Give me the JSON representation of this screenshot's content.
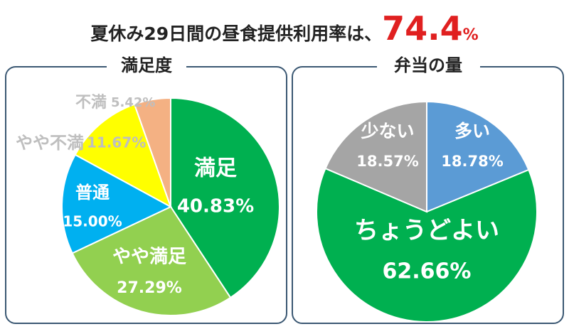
{
  "headline": {
    "text": "夏休み29日間の昼食提供利用率は、",
    "value": 74.4,
    "unit": "%"
  },
  "chart_data": [
    {
      "type": "pie",
      "title": "満足度",
      "categories": [
        "満足",
        "やや満足",
        "普通",
        "やや不満",
        "不満"
      ],
      "values": [
        40.83,
        27.29,
        15.0,
        11.67,
        5.42
      ],
      "value_labels": [
        "40.83%",
        "27.29%",
        "15.00%",
        "11.67%",
        "5.42%"
      ],
      "colors": [
        "#00b050",
        "#92d050",
        "#00b0f0",
        "#ffff00",
        "#f4b183"
      ]
    },
    {
      "type": "pie",
      "title": "弁当の量",
      "categories": [
        "多い",
        "ちょうどよい",
        "少ない"
      ],
      "values": [
        18.78,
        62.66,
        18.57
      ],
      "value_labels": [
        "18.78%",
        "62.66%",
        "18.57%"
      ],
      "colors": [
        "#5b9bd5",
        "#00b050",
        "#a5a5a5"
      ]
    }
  ]
}
